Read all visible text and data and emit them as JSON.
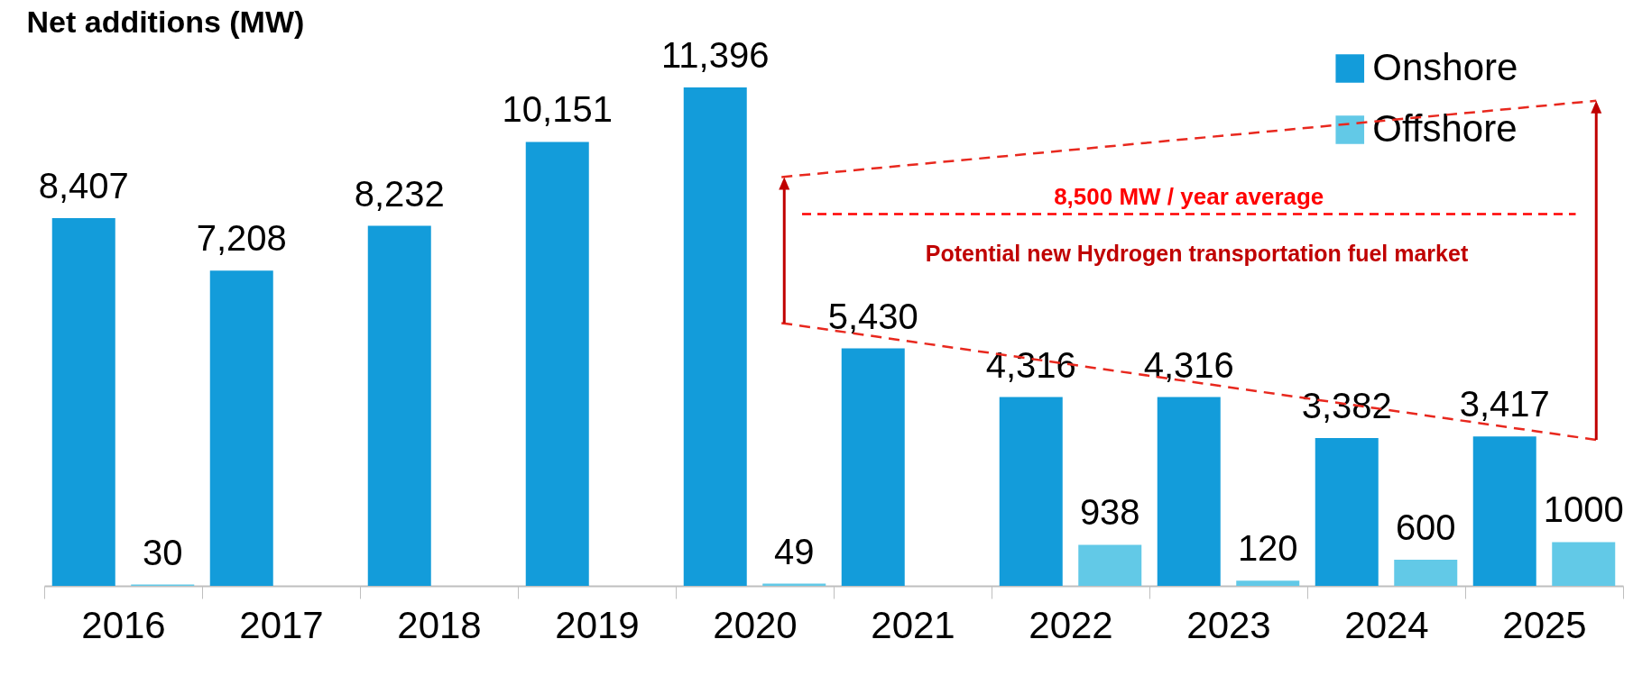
{
  "chart_data": {
    "type": "bar",
    "ylabel": "Net additions (MW)",
    "categories": [
      "2016",
      "2017",
      "2018",
      "2019",
      "2020",
      "2021",
      "2022",
      "2023",
      "2024",
      "2025"
    ],
    "series": [
      {
        "name": "Onshore",
        "color": "#139cda",
        "values": [
          8407,
          7208,
          8232,
          10151,
          11396,
          5430,
          4316,
          4316,
          3382,
          3417
        ],
        "value_labels": [
          "8,407",
          "7,208",
          "8,232",
          "10,151",
          "11,396",
          "5,430",
          "4,316",
          "4,316",
          "3,382",
          "3,417"
        ]
      },
      {
        "name": "Offshore",
        "color": "#62c9e7",
        "values": [
          30,
          null,
          null,
          null,
          49,
          null,
          938,
          120,
          600,
          1000
        ],
        "value_labels": [
          "30",
          null,
          null,
          null,
          "49",
          null,
          "938",
          "120",
          "600",
          "1000"
        ]
      }
    ],
    "ref_lines": [
      {
        "axis": "y",
        "value": 8500,
        "label": "8,500 MW / year  average",
        "color": "#ff0000",
        "line_style": "dashed"
      }
    ],
    "annotations": [
      "Potential new Hydrogen transportation fuel market"
    ],
    "legend": "top right"
  }
}
